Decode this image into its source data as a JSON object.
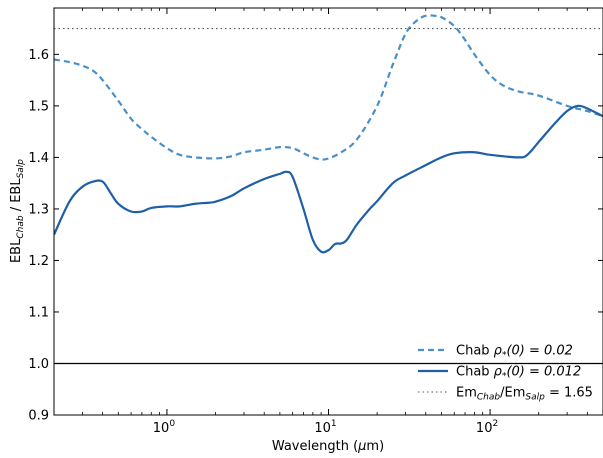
{
  "chart_data": {
    "type": "line",
    "xscale": "log",
    "xlim": [
      0.2,
      500
    ],
    "ylim": [
      0.9,
      1.69
    ],
    "xlabel": {
      "main": "Wavelength (",
      "mu": "μ",
      "unit": "m)"
    },
    "ylabel": {
      "p1": "EBL",
      "sub1": "Chab",
      "p2": " / EBL",
      "sub2": "Salp"
    },
    "x_ticks": [
      {
        "value": 1,
        "base": "10",
        "exp": "0"
      },
      {
        "value": 10,
        "base": "10",
        "exp": "1"
      },
      {
        "value": 100,
        "base": "10",
        "exp": "2"
      }
    ],
    "y_ticks": [
      "0.9",
      "1.0",
      "1.1",
      "1.2",
      "1.3",
      "1.4",
      "1.5",
      "1.6"
    ],
    "series": [
      {
        "name": "Chab ρ*(0)=0.02",
        "style": "dashed",
        "color": "#4a90c8",
        "x": [
          0.2,
          0.25,
          0.3,
          0.35,
          0.4,
          0.5,
          0.6,
          0.7,
          0.8,
          1.0,
          1.2,
          1.5,
          2,
          2.5,
          3,
          4,
          5,
          6,
          7,
          8,
          9,
          10,
          12,
          15,
          20,
          25,
          30,
          35,
          40,
          45,
          50,
          60,
          70,
          80,
          100,
          120,
          150,
          200,
          300,
          400,
          500
        ],
        "y": [
          1.59,
          1.585,
          1.578,
          1.568,
          1.55,
          1.51,
          1.475,
          1.455,
          1.44,
          1.418,
          1.405,
          1.4,
          1.398,
          1.402,
          1.41,
          1.415,
          1.42,
          1.418,
          1.408,
          1.4,
          1.396,
          1.398,
          1.41,
          1.435,
          1.5,
          1.58,
          1.64,
          1.665,
          1.675,
          1.675,
          1.672,
          1.655,
          1.628,
          1.6,
          1.56,
          1.54,
          1.528,
          1.52,
          1.5,
          1.49,
          1.48
        ]
      },
      {
        "name": "Chab ρ*(0)=0.012",
        "style": "solid",
        "color": "#1f5fa8",
        "x": [
          0.2,
          0.25,
          0.3,
          0.35,
          0.4,
          0.45,
          0.5,
          0.6,
          0.7,
          0.8,
          1.0,
          1.2,
          1.5,
          1.8,
          2.0,
          2.5,
          3,
          4,
          5,
          5.5,
          6,
          7,
          8,
          9,
          10,
          11,
          12,
          13,
          15,
          18,
          20,
          25,
          30,
          40,
          50,
          60,
          80,
          100,
          150,
          170,
          200,
          250,
          300,
          350,
          400,
          500
        ],
        "y": [
          1.25,
          1.315,
          1.343,
          1.353,
          1.353,
          1.33,
          1.31,
          1.295,
          1.295,
          1.302,
          1.305,
          1.305,
          1.31,
          1.312,
          1.314,
          1.325,
          1.34,
          1.358,
          1.368,
          1.372,
          1.362,
          1.3,
          1.24,
          1.217,
          1.22,
          1.232,
          1.233,
          1.24,
          1.27,
          1.3,
          1.315,
          1.35,
          1.365,
          1.385,
          1.4,
          1.408,
          1.41,
          1.405,
          1.4,
          1.405,
          1.43,
          1.465,
          1.49,
          1.5,
          1.495,
          1.48
        ]
      },
      {
        "name": "Em_Chab/Em_Salp = 1.65",
        "style": "dotted",
        "color": "#555555",
        "x": [
          0.2,
          500
        ],
        "y": [
          1.65,
          1.65
        ]
      },
      {
        "name": "",
        "style": "solid",
        "color": "#000000",
        "x": [
          0.2,
          500
        ],
        "y": [
          1.0,
          1.0
        ]
      }
    ],
    "legend": {
      "placement": "lower-right",
      "entries": [
        {
          "style": "dashed",
          "color": "#4a90c8",
          "label_pre": "Chab ",
          "label_math": "ρ",
          "label_sub": "*",
          "label_post": "(0) = 0.02"
        },
        {
          "style": "solid",
          "color": "#1f5fa8",
          "label_pre": "Chab ",
          "label_math": "ρ",
          "label_sub": "*",
          "label_post": "(0) = 0.012"
        },
        {
          "style": "dotted",
          "color": "#555555",
          "label_pre": "Em",
          "label_math": "",
          "label_sub": "Chab",
          "label_post": "/Em",
          "label_sub2": "Salp",
          "label_end": " = 1.65"
        }
      ]
    }
  }
}
